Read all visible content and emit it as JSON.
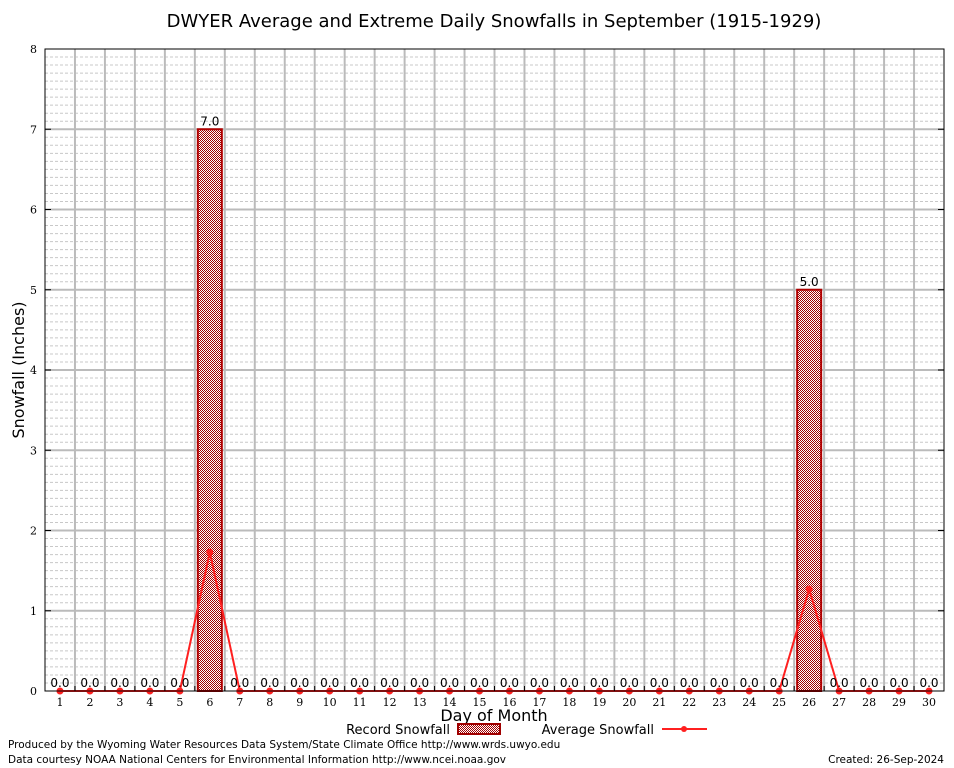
{
  "chart_data": {
    "type": "bar",
    "title": "DWYER Average and Extreme Daily Snowfalls in September (1915-1929)",
    "xlabel": "Day of Month",
    "ylabel": "Snowfall (Inches)",
    "ylim": [
      0,
      8
    ],
    "yticks": [
      "0",
      "1",
      "2",
      "3",
      "4",
      "5",
      "6",
      "7",
      "8"
    ],
    "categories": [
      "1",
      "2",
      "3",
      "4",
      "5",
      "6",
      "7",
      "8",
      "9",
      "10",
      "11",
      "12",
      "13",
      "14",
      "15",
      "16",
      "17",
      "18",
      "19",
      "20",
      "21",
      "22",
      "23",
      "24",
      "25",
      "26",
      "27",
      "28",
      "29",
      "30"
    ],
    "series": [
      {
        "name": "Record Snowfall",
        "type": "bar",
        "color": "#b00000",
        "values": [
          0,
          0,
          0,
          0,
          0,
          7.0,
          0,
          0,
          0,
          0,
          0,
          0,
          0,
          0,
          0,
          0,
          0,
          0,
          0,
          0,
          0,
          0,
          0,
          0,
          0,
          5.0,
          0,
          0,
          0,
          0
        ],
        "labels": [
          "0.0",
          "0.0",
          "0.0",
          "0.0",
          "0.0",
          "7.0",
          "0.0",
          "0.0",
          "0.0",
          "0.0",
          "0.0",
          "0.0",
          "0.0",
          "0.0",
          "0.0",
          "0.0",
          "0.0",
          "0.0",
          "0.0",
          "0.0",
          "0.0",
          "0.0",
          "0.0",
          "0.0",
          "0.0",
          "5.0",
          "0.0",
          "0.0",
          "0.0",
          "0.0"
        ]
      },
      {
        "name": "Average Snowfall",
        "type": "line",
        "color": "#ff2020",
        "values": [
          0,
          0,
          0,
          0,
          0,
          1.73,
          0,
          0,
          0,
          0,
          0,
          0,
          0,
          0,
          0,
          0,
          0,
          0,
          0,
          0,
          0,
          0,
          0,
          0,
          0,
          1.27,
          0,
          0,
          0,
          0
        ]
      }
    ],
    "grid": true,
    "legend_placement": "bottom"
  },
  "footer": {
    "produced_by": "Produced by the Wyoming Water Resources Data System/State Climate Office http://www.wrds.uwyo.edu",
    "data_courtesy": "Data courtesy NOAA National Centers for Environmental Information http://www.ncei.noaa.gov",
    "created": "Created: 26-Sep-2024"
  }
}
